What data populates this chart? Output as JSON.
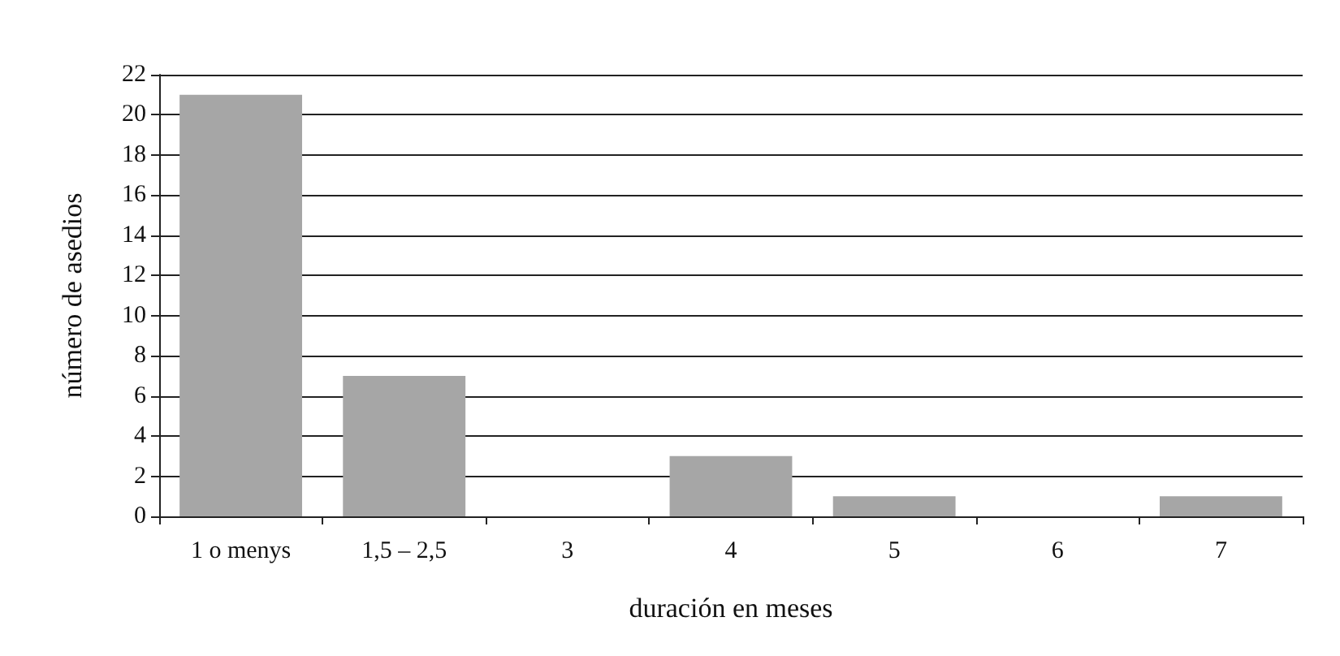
{
  "chart_data": {
    "type": "bar",
    "xlabel": "duración en meses",
    "ylabel": "número de asedios",
    "categories": [
      "1 o menys",
      "1,5 – 2,5",
      "3",
      "4",
      "5",
      "6",
      "7"
    ],
    "values": [
      21,
      7,
      0,
      3,
      1,
      0,
      1
    ],
    "color": "#a6a6a6",
    "ylim": [
      0,
      22
    ],
    "yticks": [
      0,
      2,
      4,
      6,
      8,
      10,
      12,
      14,
      16,
      18,
      20,
      22
    ],
    "grid": "y"
  }
}
